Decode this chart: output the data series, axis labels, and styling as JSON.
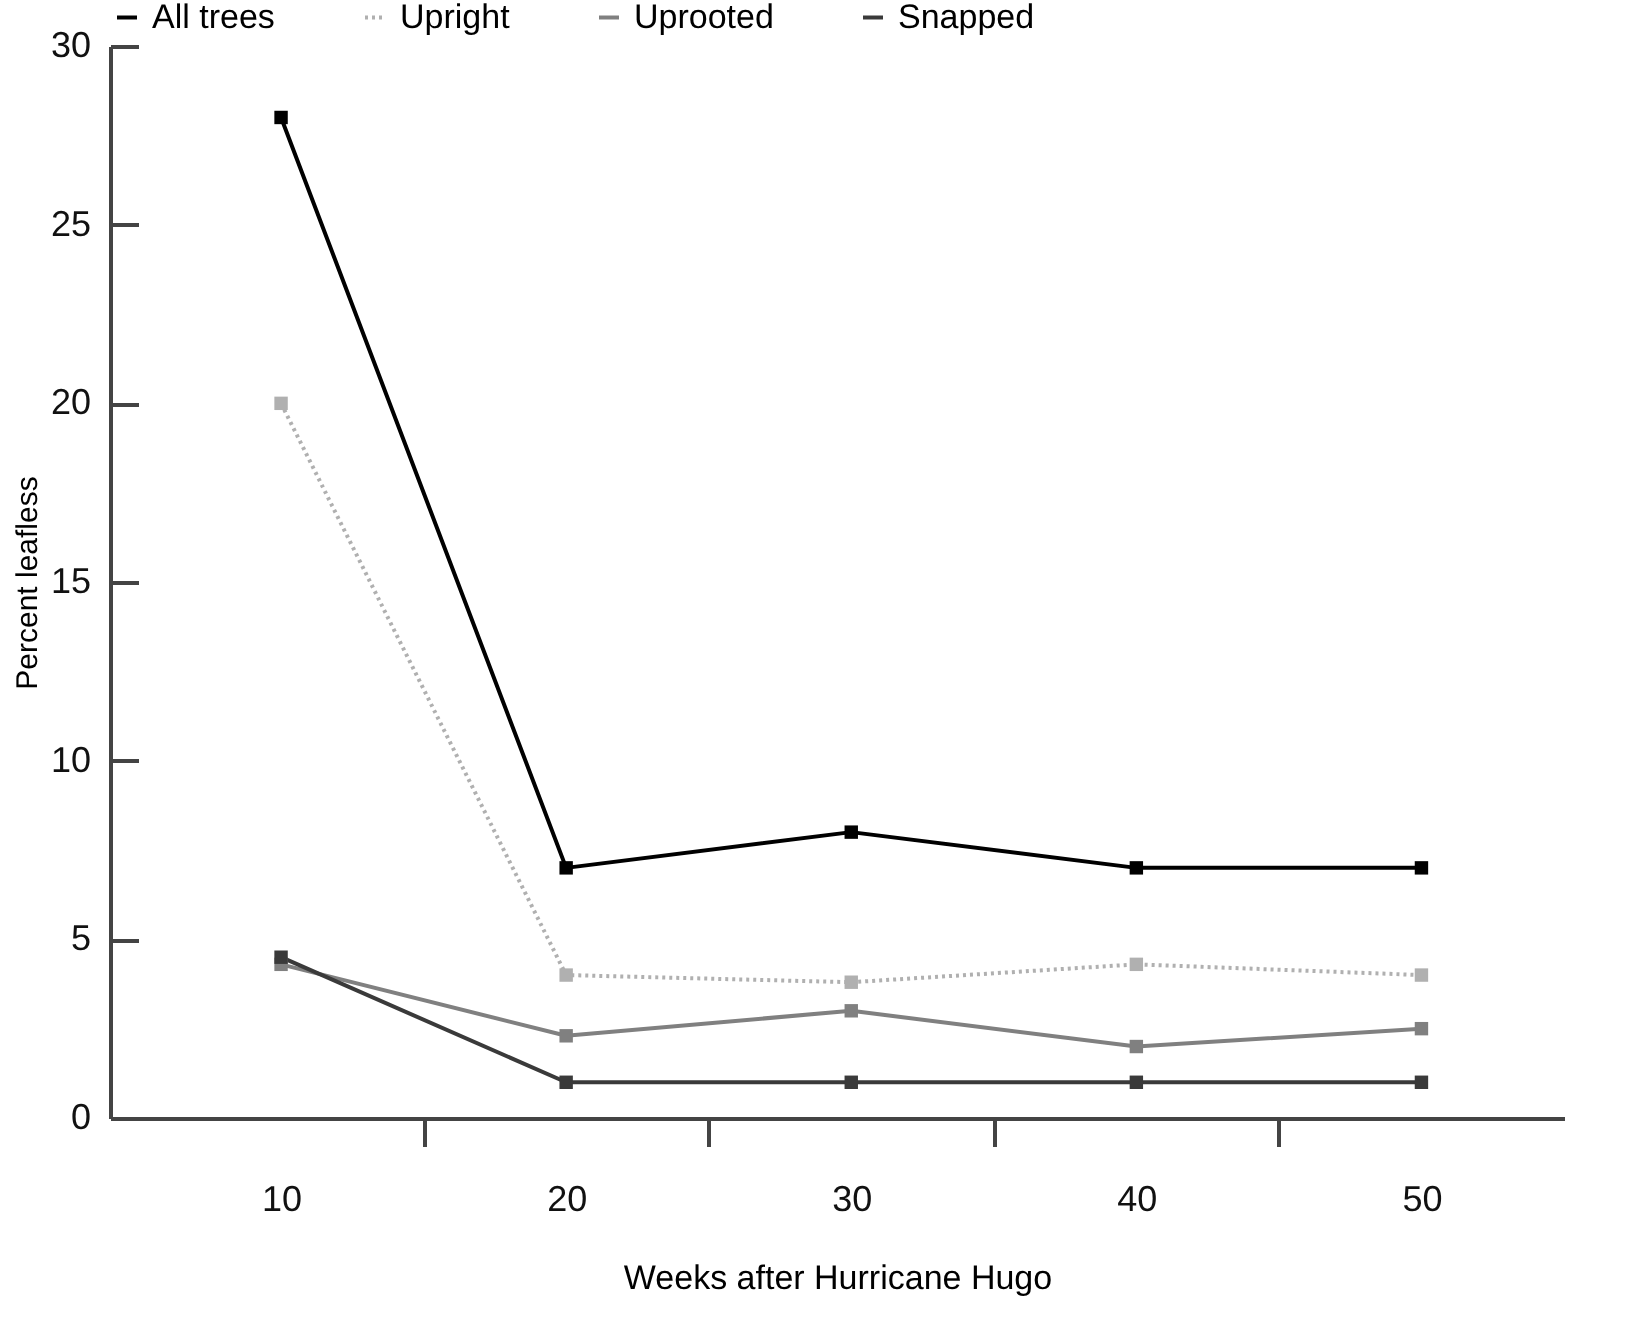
{
  "chart_data": {
    "type": "line",
    "xlabel": "Weeks after Hurricane Hugo",
    "ylabel": "Percent leafless",
    "x": [
      10,
      20,
      30,
      40,
      50
    ],
    "series": [
      {
        "name": "All trees",
        "color": "#000000",
        "values": [
          28,
          7,
          8,
          7,
          7
        ]
      },
      {
        "name": "Upright",
        "color": "#b0b0b0",
        "values": [
          20,
          4.0,
          3.8,
          4.3,
          4.0
        ],
        "line_style": "dotted"
      },
      {
        "name": "Uprooted",
        "color": "#808080",
        "values": [
          4.3,
          2.3,
          3.0,
          2.0,
          2.5
        ]
      },
      {
        "name": "Snapped",
        "color": "#3a3a3a",
        "values": [
          4.5,
          1,
          1,
          1,
          1
        ]
      }
    ],
    "xlim": [
      4,
      55
    ],
    "xticks": [
      10,
      {
        "value": 15,
        "label": null
      },
      20,
      {
        "value": 25,
        "label": null
      },
      30,
      {
        "value": 35,
        "label": null
      },
      40,
      {
        "value": 45,
        "label": null
      },
      50
    ],
    "ylim": [
      0,
      30
    ],
    "yticks": [
      0,
      5,
      10,
      15,
      20,
      25,
      30
    ],
    "marker": "square",
    "line_style": "solid",
    "legend": "top"
  }
}
